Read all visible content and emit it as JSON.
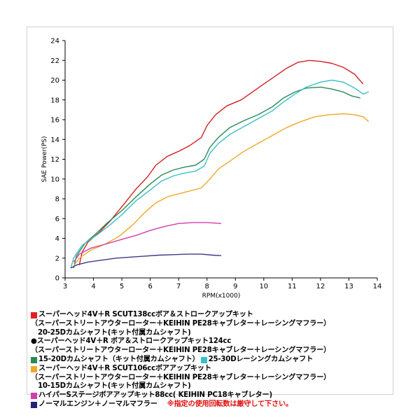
{
  "chart_data": {
    "type": "line",
    "xlabel": "RPM(x1000)",
    "ylabel": "SAE Power(PS)",
    "xlim": [
      3,
      14
    ],
    "ylim": [
      0,
      24
    ],
    "x_ticks": [
      "3",
      "4",
      "5",
      "6",
      "7",
      "8",
      "9",
      "10",
      "11",
      "12",
      "13",
      "14"
    ],
    "y_ticks": [
      "0",
      "2",
      "4",
      "6",
      "8",
      "10",
      "12",
      "14",
      "16",
      "18",
      "20",
      "22",
      "24"
    ],
    "grid": false,
    "series": [
      {
        "name": "スーパーヘッド4V＋R SCUT138ccボア＆ストロークアップキット",
        "color": "#d42020",
        "points": [
          [
            3.5,
            1.3
          ],
          [
            3.6,
            2.6
          ],
          [
            3.8,
            3.6
          ],
          [
            4.2,
            4.6
          ],
          [
            4.6,
            5.8
          ],
          [
            5.0,
            7.2
          ],
          [
            5.5,
            9.0
          ],
          [
            5.9,
            10.2
          ],
          [
            6.2,
            11.4
          ],
          [
            6.6,
            12.3
          ],
          [
            7.0,
            12.8
          ],
          [
            7.4,
            13.4
          ],
          [
            7.8,
            14.2
          ],
          [
            8.0,
            15.4
          ],
          [
            8.3,
            16.5
          ],
          [
            8.7,
            17.4
          ],
          [
            9.2,
            18.0
          ],
          [
            9.6,
            18.8
          ],
          [
            10.0,
            19.6
          ],
          [
            10.4,
            20.4
          ],
          [
            10.8,
            21.2
          ],
          [
            11.2,
            21.8
          ],
          [
            11.6,
            22.0
          ],
          [
            12.0,
            21.9
          ],
          [
            12.4,
            21.7
          ],
          [
            12.8,
            21.3
          ],
          [
            13.2,
            20.6
          ],
          [
            13.5,
            19.6
          ]
        ]
      },
      {
        "name": "15-20Dカムシャフト（キット付属カムシャフト）",
        "color": "#2a8a55",
        "points": [
          [
            3.3,
            1.0
          ],
          [
            3.4,
            2.2
          ],
          [
            3.7,
            3.5
          ],
          [
            4.1,
            4.5
          ],
          [
            4.5,
            5.6
          ],
          [
            5.0,
            6.8
          ],
          [
            5.5,
            8.2
          ],
          [
            6.0,
            9.5
          ],
          [
            6.4,
            10.4
          ],
          [
            6.8,
            10.9
          ],
          [
            7.2,
            11.2
          ],
          [
            7.6,
            11.4
          ],
          [
            7.9,
            12.0
          ],
          [
            8.1,
            13.2
          ],
          [
            8.4,
            14.2
          ],
          [
            8.8,
            15.2
          ],
          [
            9.3,
            15.9
          ],
          [
            9.8,
            16.5
          ],
          [
            10.3,
            17.3
          ],
          [
            10.7,
            18.2
          ],
          [
            11.1,
            18.8
          ],
          [
            11.5,
            19.2
          ],
          [
            12.0,
            19.3
          ],
          [
            12.4,
            19.1
          ],
          [
            12.8,
            18.8
          ],
          [
            13.1,
            18.4
          ],
          [
            13.4,
            18.2
          ]
        ]
      },
      {
        "name": "25-30Dレーシングカムシャフト",
        "color": "#3bbfc8",
        "points": [
          [
            3.2,
            1.0
          ],
          [
            3.3,
            2.0
          ],
          [
            3.6,
            3.3
          ],
          [
            4.1,
            4.3
          ],
          [
            4.6,
            5.4
          ],
          [
            5.0,
            6.4
          ],
          [
            5.5,
            7.8
          ],
          [
            6.0,
            8.9
          ],
          [
            6.4,
            9.8
          ],
          [
            6.8,
            10.3
          ],
          [
            7.2,
            10.6
          ],
          [
            7.6,
            10.8
          ],
          [
            7.9,
            11.3
          ],
          [
            8.1,
            12.6
          ],
          [
            8.4,
            13.6
          ],
          [
            8.8,
            14.5
          ],
          [
            9.3,
            15.3
          ],
          [
            9.8,
            16.1
          ],
          [
            10.3,
            16.9
          ],
          [
            10.7,
            17.8
          ],
          [
            11.1,
            18.6
          ],
          [
            11.5,
            19.3
          ],
          [
            12.0,
            19.8
          ],
          [
            12.4,
            20.0
          ],
          [
            12.8,
            19.8
          ],
          [
            13.2,
            19.2
          ],
          [
            13.5,
            18.6
          ],
          [
            13.7,
            18.8
          ]
        ]
      },
      {
        "name": "スーパーヘッド4V＋R SCUT106ccボアアップキット",
        "color": "#f0a828",
        "points": [
          [
            3.3,
            1.2
          ],
          [
            3.5,
            2.0
          ],
          [
            3.9,
            2.8
          ],
          [
            4.4,
            3.4
          ],
          [
            4.9,
            4.2
          ],
          [
            5.4,
            5.4
          ],
          [
            5.8,
            6.6
          ],
          [
            6.2,
            7.6
          ],
          [
            6.6,
            8.2
          ],
          [
            7.0,
            8.5
          ],
          [
            7.4,
            8.8
          ],
          [
            7.8,
            9.1
          ],
          [
            8.1,
            10.0
          ],
          [
            8.4,
            11.0
          ],
          [
            8.8,
            11.8
          ],
          [
            9.3,
            12.8
          ],
          [
            9.8,
            13.6
          ],
          [
            10.3,
            14.4
          ],
          [
            10.8,
            15.2
          ],
          [
            11.3,
            15.8
          ],
          [
            11.8,
            16.3
          ],
          [
            12.3,
            16.5
          ],
          [
            12.8,
            16.6
          ],
          [
            13.2,
            16.5
          ],
          [
            13.5,
            16.3
          ],
          [
            13.7,
            15.8
          ]
        ]
      },
      {
        "name": "ハイパーSステージボアアップキット88cc",
        "color": "#d43ca8",
        "points": [
          [
            3.3,
            1.6
          ],
          [
            3.5,
            2.4
          ],
          [
            3.9,
            3.0
          ],
          [
            4.4,
            3.4
          ],
          [
            5.0,
            3.9
          ],
          [
            5.5,
            4.3
          ],
          [
            6.0,
            4.8
          ],
          [
            6.5,
            5.2
          ],
          [
            7.0,
            5.5
          ],
          [
            7.5,
            5.6
          ],
          [
            8.0,
            5.6
          ],
          [
            8.5,
            5.5
          ]
        ]
      },
      {
        "name": "ノーマルエンジン＋ノーマルマフラー",
        "color": "#3a3a8a",
        "points": [
          [
            3.2,
            1.0
          ],
          [
            3.4,
            1.3
          ],
          [
            3.8,
            1.6
          ],
          [
            4.3,
            1.8
          ],
          [
            4.8,
            2.0
          ],
          [
            5.3,
            2.1
          ],
          [
            5.8,
            2.2
          ],
          [
            6.3,
            2.3
          ],
          [
            6.8,
            2.35
          ],
          [
            7.3,
            2.4
          ],
          [
            7.8,
            2.4
          ],
          [
            8.2,
            2.3
          ],
          [
            8.5,
            2.25
          ]
        ]
      }
    ]
  },
  "legend": {
    "red_title": "スーパーヘッド4V＋R SCUT138ccボア＆ストロークアップキット",
    "red_sub1": "（スーパーストリートアウターローター＋KEIHIN PE28キャブレター＋レーシングマフラー）",
    "red_sub2": "20-25Dカムシャフト(キット付属カムシャフト)",
    "black_title": "●スーパーヘッド4V＋R ボア＆ストロークアップキット124cc",
    "black_sub1": "（スーパーストリートアウターローター＋KEIHIN PE28キャブレター＋レーシングマフラー）",
    "green_label": "15-20Dカムシャフト（キット付属カムシャフト）",
    "cyan_label": "25-30Dレーシングカムシャフト",
    "orange_title": "スーパーヘッド4V＋R SCUT106ccボアアップキット",
    "orange_sub1": "（スーパーストリートアウターローター＋KEIHIN PE28キャブレター＋レーシングマフラー）",
    "orange_sub2": "10-15Dカムシャフト(キット付属カムシャフト)",
    "magenta_label": "ハイパーSステージボアアップキット88cc( KEIHIN PC18キャブレター)",
    "navy_label": "ノーマルエンジン＋ノーマルマフラー",
    "note": "※指定の使用回転数は厳守して下さい。",
    "colors": {
      "red": "#e02020",
      "green": "#2a8a55",
      "cyan": "#3bbfc8",
      "orange": "#f0a828",
      "magenta": "#d43ca8",
      "navy": "#22227a"
    }
  }
}
